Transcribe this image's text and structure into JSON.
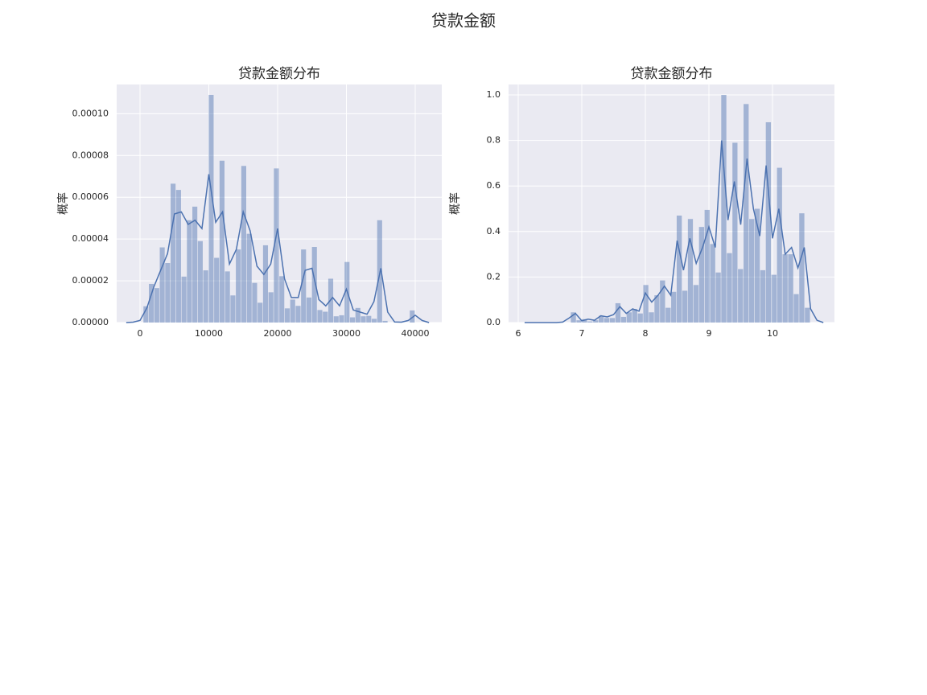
{
  "title": "贷款金额",
  "chart_data": [
    {
      "type": "histogram",
      "title": "贷款金额分布",
      "ylabel": "概率",
      "color": "#4c72b0",
      "bar_alpha": 0.45,
      "grid": true,
      "bins": [
        500,
        1290,
        2080,
        2870,
        3660,
        4450,
        5240,
        6030,
        6820,
        7610,
        8400,
        9190,
        9980,
        10770,
        11560,
        12350,
        13140,
        13930,
        14720,
        15510,
        16300,
        17090,
        17880,
        18670,
        19460,
        20250,
        21040,
        21830,
        22620,
        23410,
        24200,
        24990,
        25780,
        26570,
        27360,
        28150,
        28940,
        29730,
        30520,
        31310,
        32100,
        32890,
        33680,
        34470,
        35260,
        36050,
        36840,
        37630,
        38420,
        39210,
        40000
      ],
      "values": [
        7.8e-06,
        1.85e-05,
        1.65e-05,
        3.6e-05,
        2.85e-05,
        6.65e-05,
        6.35e-05,
        2.2e-05,
        4.9e-05,
        5.55e-05,
        3.9e-05,
        2.5e-05,
        0.000109,
        3.1e-05,
        7.75e-05,
        2.45e-05,
        1.3e-05,
        3.5e-05,
        7.5e-05,
        4.25e-05,
        1.9e-05,
        9.5e-06,
        3.7e-05,
        1.45e-05,
        7.38e-05,
        2.22e-05,
        6.8e-06,
        1.1e-05,
        8e-06,
        3.5e-05,
        1.2e-05,
        3.62e-05,
        6e-06,
        5.2e-06,
        2.1e-05,
        3e-06,
        3.5e-06,
        2.9e-05,
        2.5e-06,
        7e-06,
        3e-06,
        3.2e-06,
        1.8e-06,
        4.9e-05,
        8e-07,
        0,
        0,
        0,
        0,
        5.8e-06
      ],
      "kde": {
        "x": [
          -2000,
          -1000,
          0,
          1000,
          2000,
          3000,
          4000,
          5000,
          6000,
          7000,
          8000,
          9000,
          10000,
          11000,
          12000,
          13000,
          14000,
          15000,
          16000,
          17000,
          18000,
          19000,
          20000,
          21000,
          22000,
          23000,
          24000,
          25000,
          26000,
          27000,
          28000,
          29000,
          30000,
          31000,
          32000,
          33000,
          34000,
          35000,
          36000,
          37000,
          38000,
          39000,
          40000,
          41000,
          42000
        ],
        "values": [
          0,
          2e-07,
          1e-06,
          7e-06,
          1.7e-05,
          2.5e-05,
          3.3e-05,
          5.2e-05,
          5.3e-05,
          4.7e-05,
          4.9e-05,
          4.5e-05,
          7.1e-05,
          4.8e-05,
          5.3e-05,
          2.8e-05,
          3.5e-05,
          5.3e-05,
          4.4e-05,
          2.7e-05,
          2.3e-05,
          2.8e-05,
          4.5e-05,
          2.1e-05,
          1.2e-05,
          1.2e-05,
          2.5e-05,
          2.6e-05,
          1.1e-05,
          8e-06,
          1.2e-05,
          8e-06,
          1.6e-05,
          6e-06,
          5e-06,
          4e-06,
          1e-05,
          2.6e-05,
          5e-06,
          3e-07,
          2e-07,
          1e-06,
          3.5e-06,
          1e-06,
          0
        ]
      },
      "xlim": [
        -3390,
        43860
      ],
      "ylim": [
        0,
        0.000114
      ],
      "xticks": [
        0,
        10000,
        20000,
        30000,
        40000
      ],
      "yticks": [
        {
          "value": 0,
          "label": "0.00000"
        },
        {
          "value": 2e-05,
          "label": "0.00002"
        },
        {
          "value": 4e-05,
          "label": "0.00004"
        },
        {
          "value": 6e-05,
          "label": "0.00006"
        },
        {
          "value": 8e-05,
          "label": "0.00008"
        },
        {
          "value": 0.0001,
          "label": "0.00010"
        }
      ]
    },
    {
      "type": "histogram",
      "title": "贷款金额分布",
      "ylabel": "概率",
      "color": "#4c72b0",
      "bar_alpha": 0.45,
      "grid": true,
      "bins": [
        6.215,
        6.302,
        6.39,
        6.478,
        6.565,
        6.653,
        6.741,
        6.828,
        6.916,
        7.003,
        7.091,
        7.179,
        7.266,
        7.354,
        7.442,
        7.529,
        7.617,
        7.705,
        7.792,
        7.88,
        7.968,
        8.055,
        8.143,
        8.23,
        8.318,
        8.406,
        8.493,
        8.581,
        8.669,
        8.756,
        8.844,
        8.932,
        9.019,
        9.107,
        9.194,
        9.282,
        9.37,
        9.457,
        9.545,
        9.633,
        9.72,
        9.808,
        9.895,
        9.983,
        10.071,
        10.158,
        10.246,
        10.334,
        10.421,
        10.509,
        10.597
      ],
      "values": [
        0,
        0,
        0,
        0,
        0,
        0,
        0,
        0.045,
        0.01,
        0.015,
        0.005,
        0.01,
        0.03,
        0.02,
        0.02,
        0.085,
        0.025,
        0.045,
        0.06,
        0.04,
        0.165,
        0.045,
        0.12,
        0.185,
        0.065,
        0.135,
        0.47,
        0.14,
        0.455,
        0.165,
        0.42,
        0.495,
        0.345,
        0.22,
        1.0,
        0.305,
        0.79,
        0.235,
        0.96,
        0.455,
        0.5,
        0.23,
        0.88,
        0.21,
        0.68,
        0.3,
        0.3,
        0.125,
        0.48,
        0.065
      ],
      "kde": {
        "x": [
          6.1,
          6.2,
          6.3,
          6.4,
          6.5,
          6.6,
          6.7,
          6.8,
          6.9,
          7.0,
          7.1,
          7.2,
          7.3,
          7.4,
          7.5,
          7.6,
          7.7,
          7.8,
          7.9,
          8.0,
          8.1,
          8.2,
          8.3,
          8.4,
          8.5,
          8.6,
          8.7,
          8.8,
          8.9,
          9.0,
          9.1,
          9.2,
          9.3,
          9.4,
          9.5,
          9.6,
          9.7,
          9.8,
          9.9,
          10.0,
          10.1,
          10.2,
          10.3,
          10.4,
          10.5,
          10.6,
          10.7,
          10.8
        ],
        "values": [
          0,
          0,
          0,
          0,
          0,
          0,
          0.002,
          0.02,
          0.04,
          0.008,
          0.015,
          0.01,
          0.03,
          0.025,
          0.035,
          0.07,
          0.04,
          0.06,
          0.05,
          0.13,
          0.09,
          0.12,
          0.16,
          0.12,
          0.36,
          0.23,
          0.37,
          0.26,
          0.33,
          0.42,
          0.33,
          0.8,
          0.45,
          0.62,
          0.43,
          0.72,
          0.5,
          0.38,
          0.69,
          0.37,
          0.5,
          0.3,
          0.33,
          0.24,
          0.33,
          0.06,
          0.01,
          0
        ]
      },
      "xlim": [
        5.848,
        10.975
      ],
      "ylim": [
        0,
        1.046
      ],
      "xticks": [
        6,
        7,
        8,
        9,
        10
      ],
      "yticks": [
        {
          "value": 0,
          "label": "0.0"
        },
        0.2,
        0.4,
        0.6,
        0.8,
        {
          "value": 1,
          "label": "1.0"
        }
      ]
    }
  ]
}
